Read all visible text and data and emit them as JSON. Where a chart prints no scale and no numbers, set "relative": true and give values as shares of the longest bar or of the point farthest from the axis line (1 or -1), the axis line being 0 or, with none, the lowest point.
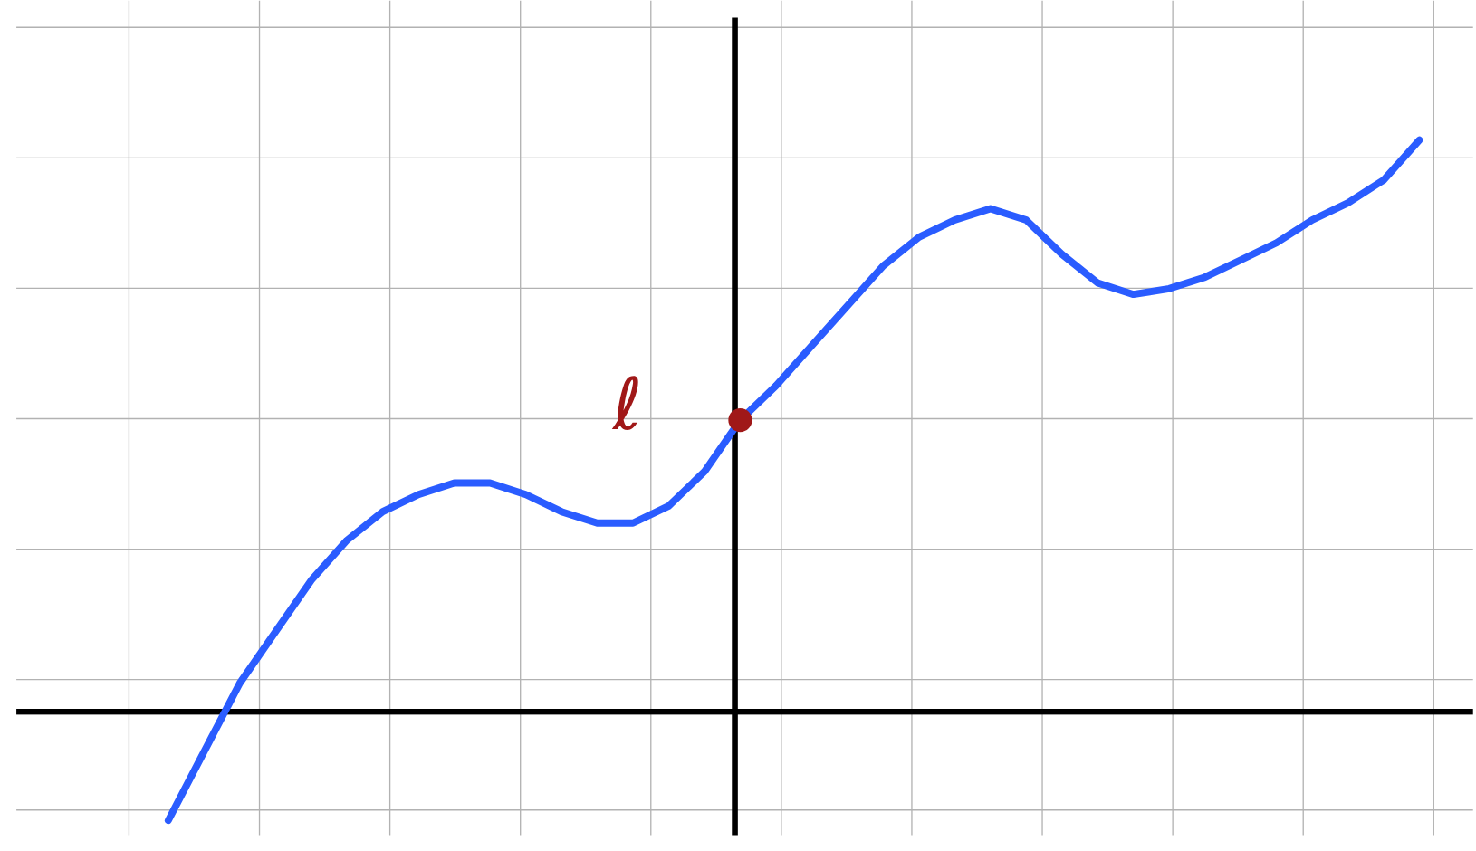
{
  "chart_data": {
    "type": "line",
    "relative": true,
    "grid": true,
    "categories": [
      null,
      null,
      null,
      null,
      null,
      null,
      null,
      null,
      null,
      null,
      null,
      null,
      null,
      null,
      null,
      null,
      null,
      null,
      null,
      null,
      null,
      null,
      null,
      null,
      null,
      null,
      null,
      null,
      null,
      null,
      null,
      null,
      null,
      null,
      null,
      null
    ],
    "series": [
      {
        "type": "line",
        "color": "#2a5cff",
        "marker": "none",
        "values": [
          -0.19,
          -0.07,
          0.05,
          0.14,
          0.23,
          0.3,
          0.35,
          0.38,
          0.4,
          0.4,
          0.38,
          0.35,
          0.33,
          0.33,
          0.36,
          0.42,
          0.51,
          0.57,
          0.64,
          0.71,
          0.78,
          0.83,
          0.86,
          0.88,
          0.86,
          0.8,
          0.75,
          0.73,
          0.74,
          0.76,
          0.79,
          0.82,
          0.86,
          0.89,
          0.93,
          1.0
        ]
      }
    ],
    "annotations": [
      "ℓ"
    ]
  }
}
